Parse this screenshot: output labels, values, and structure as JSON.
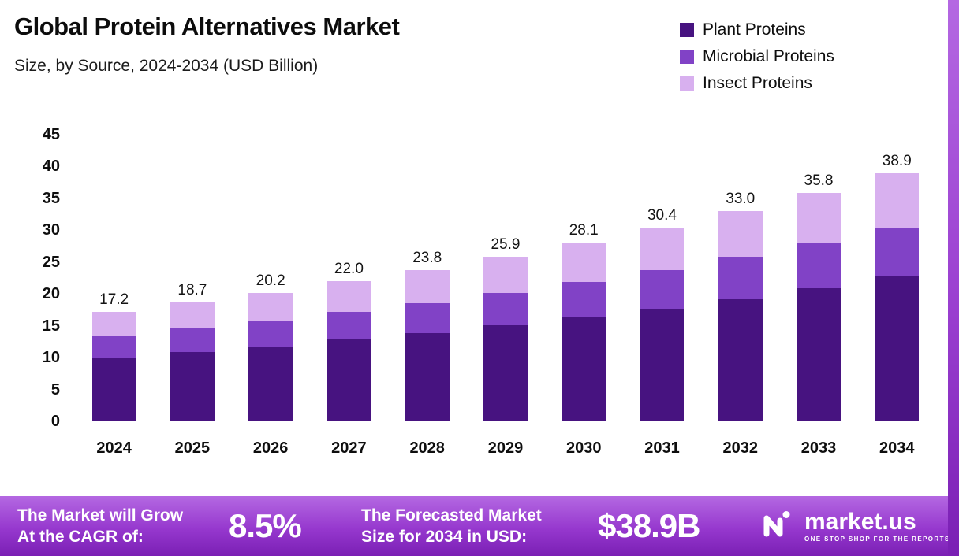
{
  "header": {
    "title": "Global Protein Alternatives Market",
    "subtitle": "Size, by Source, 2024-2034 (USD Billion)"
  },
  "legend": [
    {
      "label": "Plant Proteins",
      "color": "#471380"
    },
    {
      "label": "Microbial Proteins",
      "color": "#8142c6"
    },
    {
      "label": "Insect Proteins",
      "color": "#d8b0ef"
    }
  ],
  "chart_data": {
    "type": "bar",
    "stacked": true,
    "title": "Global Protein Alternatives Market Size, by Source, 2024-2034 (USD Billion)",
    "categories": [
      "2024",
      "2025",
      "2026",
      "2027",
      "2028",
      "2029",
      "2030",
      "2031",
      "2032",
      "2033",
      "2034"
    ],
    "series": [
      {
        "key": "plant",
        "name": "Plant Proteins",
        "color": "#471380",
        "values": [
          10.0,
          10.9,
          11.8,
          12.8,
          13.9,
          15.1,
          16.3,
          17.7,
          19.2,
          20.9,
          22.7
        ]
      },
      {
        "key": "microbial",
        "name": "Microbial Proteins",
        "color": "#8142c6",
        "values": [
          3.4,
          3.7,
          4.0,
          4.4,
          4.7,
          5.1,
          5.6,
          6.1,
          6.7,
          7.2,
          7.7
        ]
      },
      {
        "key": "insect",
        "name": "Insect Proteins",
        "color": "#d8b0ef",
        "values": [
          3.8,
          4.1,
          4.4,
          4.8,
          5.2,
          5.7,
          6.2,
          6.6,
          7.1,
          7.7,
          8.5
        ]
      }
    ],
    "totals": [
      "17.2",
      "18.7",
      "20.2",
      "22.0",
      "23.8",
      "25.9",
      "28.1",
      "30.4",
      "33.0",
      "35.8",
      "38.9"
    ],
    "xlabel": "",
    "ylabel": "",
    "ylim": [
      0,
      45
    ],
    "ytick_step": 5,
    "grid": false,
    "legend_position": "top-right"
  },
  "footer": {
    "cagr_label": [
      "The Market will Grow",
      "At the CAGR of:"
    ],
    "cagr_value": "8.5%",
    "forecast_label": [
      "The Forecasted Market",
      "Size for 2034 in USD:"
    ],
    "forecast_value": "$38.9B",
    "brand": "market.us",
    "brand_tagline": "ONE STOP SHOP FOR THE REPORTS"
  },
  "accent_colors": {
    "banner_top": "#b468e2",
    "banner_bottom": "#7a1fb4",
    "side_strip": "#9a3fd0"
  }
}
